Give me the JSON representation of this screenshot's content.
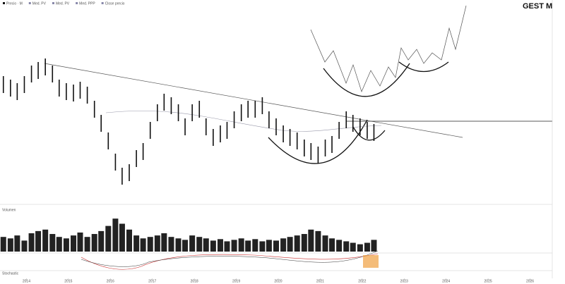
{
  "title": "GEST  M",
  "legend": [
    "Precio · M",
    "Med. PV",
    "Med. PV",
    "Med. PPP",
    "Close precio"
  ],
  "volume_label": "Volumen",
  "oscillator_label": "Stochastic",
  "chart_data": [
    {
      "type": "range",
      "name": "Precio",
      "x": [
        2013.45,
        2013.62,
        2013.78,
        2013.95,
        2014.12,
        2014.28,
        2014.45,
        2014.62,
        2014.78,
        2014.95,
        2015.12,
        2015.28,
        2015.45,
        2015.62,
        2015.78,
        2015.95,
        2016.12,
        2016.28,
        2016.45,
        2016.62,
        2016.78,
        2016.95,
        2017.12,
        2017.28,
        2017.45,
        2017.62,
        2017.78,
        2017.95,
        2018.12,
        2018.28,
        2018.45,
        2018.62,
        2018.78,
        2018.95,
        2019.12,
        2019.28,
        2019.45,
        2019.62,
        2019.78,
        2019.95,
        2020.12,
        2020.28,
        2020.45,
        2020.62,
        2020.78,
        2020.95,
        2021.12,
        2021.28,
        2021.45,
        2021.62,
        2021.78,
        2021.95,
        2022.12,
        2022.28
      ],
      "high": [
        177,
        172,
        167,
        177,
        192,
        197,
        202,
        192,
        172,
        167,
        165,
        169,
        162,
        142,
        122,
        97,
        67,
        47,
        52,
        72,
        82,
        112,
        137,
        152,
        147,
        137,
        117,
        137,
        142,
        117,
        102,
        107,
        112,
        127,
        137,
        142,
        142,
        147,
        127,
        117,
        107,
        102,
        97,
        87,
        82,
        77,
        87,
        92,
        112,
        127,
        122,
        117,
        112,
        109
      ],
      "low": [
        153,
        148,
        143,
        153,
        168,
        173,
        178,
        168,
        148,
        143,
        141,
        145,
        138,
        118,
        98,
        73,
        43,
        23,
        28,
        48,
        58,
        88,
        113,
        128,
        123,
        113,
        93,
        113,
        118,
        93,
        78,
        83,
        88,
        103,
        113,
        118,
        118,
        123,
        103,
        93,
        83,
        78,
        73,
        63,
        58,
        53,
        63,
        68,
        88,
        103,
        98,
        93,
        88,
        85
      ],
      "color": "#111111",
      "xlim": [
        2013.37,
        2026.53
      ],
      "ylim": [
        0,
        285
      ],
      "xticks": [
        2014,
        2015,
        2016,
        2017,
        2018,
        2019,
        2020,
        2021,
        2022,
        2023,
        2024,
        2025,
        2026
      ]
    },
    {
      "type": "bar",
      "name": "Volumen",
      "values": [
        20,
        18,
        22,
        15,
        25,
        28,
        30,
        24,
        20,
        18,
        22,
        26,
        20,
        24,
        28,
        35,
        45,
        38,
        30,
        22,
        18,
        20,
        22,
        25,
        20,
        18,
        16,
        22,
        20,
        18,
        15,
        17,
        14,
        16,
        18,
        15,
        17,
        14,
        16,
        15,
        18,
        20,
        22,
        24,
        30,
        28,
        22,
        18,
        16,
        14,
        12,
        10,
        12,
        16
      ],
      "color": "#222222",
      "ylim": [
        0,
        50
      ]
    }
  ]
}
